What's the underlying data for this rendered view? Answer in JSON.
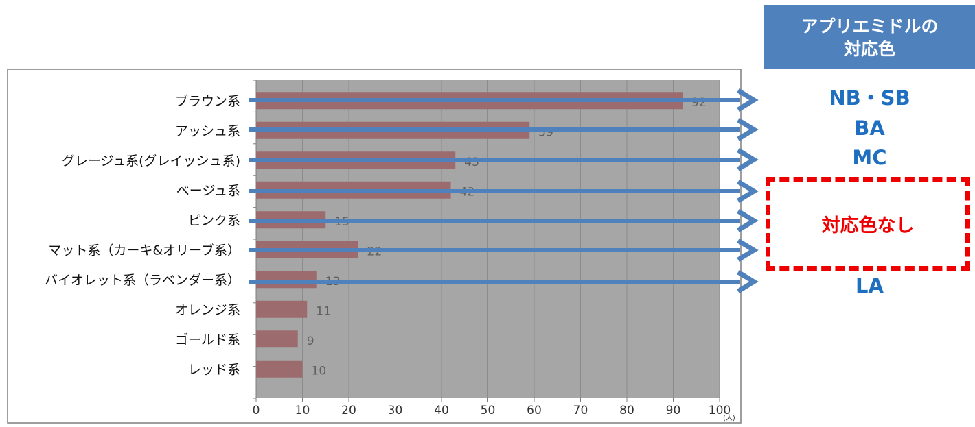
{
  "chart_data": {
    "type": "bar",
    "orientation": "horizontal",
    "categories": [
      "ブラウン系",
      "アッシュ系",
      "グレージュ系(グレイッシュ系)",
      "ベージュ系",
      "ピンク系",
      "マット系（カーキ&オリーブ系）",
      "バイオレット系（ラベンダー系）",
      "オレンジ系",
      "ゴールド系",
      "レッド系"
    ],
    "values": [
      92,
      59,
      43,
      42,
      15,
      22,
      13,
      11,
      9,
      10
    ],
    "x_ticks": [
      "0",
      "10",
      "20",
      "30",
      "40",
      "50",
      "60",
      "70",
      "80",
      "90",
      "100"
    ],
    "xlim": [
      0,
      100
    ],
    "x_unit": "(人)",
    "grid": "vertical",
    "colors": {
      "bar": "#9b6b6e",
      "plot_background": "#a6a6a6",
      "gridline": "#8c8c8c",
      "data_label": "#5f5f5f",
      "arrow": "#4f81bd"
    }
  },
  "mapping": {
    "header_line1": "アプリエミドルの",
    "header_line2": "対応色",
    "labels": [
      "NB・SB",
      "BA",
      "MC",
      "LA"
    ],
    "none_label": "対応色なし",
    "label_color": "#1f6fc0",
    "header_color": "#4f81bd",
    "none_color": "#ee0000"
  }
}
